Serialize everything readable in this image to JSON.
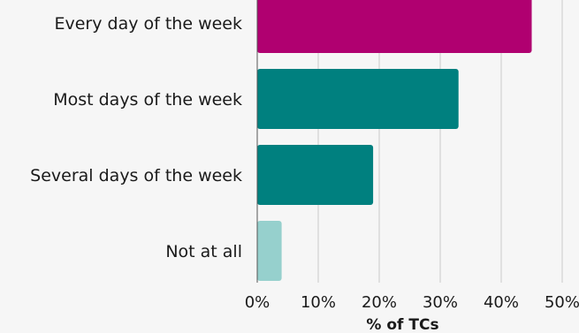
{
  "chart_data": {
    "type": "bar",
    "orientation": "horizontal",
    "categories": [
      "Every day of the week",
      "Most days of the week",
      "Several days of the week",
      "Not at all"
    ],
    "values": [
      45,
      33,
      19,
      4
    ],
    "bar_colors": [
      "#b00070",
      "#00807f",
      "#00807f",
      "#96d0cd"
    ],
    "xlabel": "% of TCs",
    "xlim": [
      0,
      50
    ],
    "xticks": [
      0,
      10,
      20,
      30,
      40,
      50
    ],
    "tick_suffix": "%",
    "grid": "vertical"
  }
}
